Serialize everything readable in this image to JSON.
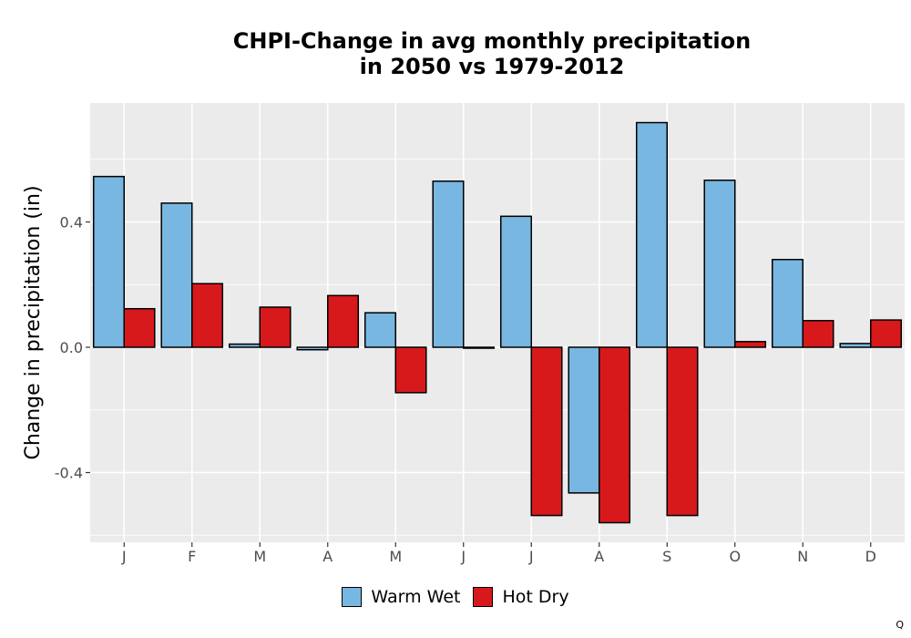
{
  "chart_data": {
    "type": "bar",
    "title_line1": "CHPI-Change in avg monthly precipitation",
    "title_line2": "in 2050 vs 1979-2012",
    "xlabel": "",
    "ylabel": "Change in precipitation (in)",
    "categories": [
      "J",
      "F",
      "M",
      "A",
      "M",
      "J",
      "J",
      "A",
      "S",
      "O",
      "N",
      "D"
    ],
    "series": [
      {
        "name": "Warm Wet",
        "color": "#78B7E1",
        "values": [
          0.545,
          0.46,
          0.01,
          -0.008,
          0.11,
          0.53,
          0.418,
          -0.465,
          0.717,
          0.533,
          0.28,
          0.012
        ]
      },
      {
        "name": "Hot Dry",
        "color": "#D7191C",
        "values": [
          0.123,
          0.203,
          0.128,
          0.165,
          -0.145,
          -0.003,
          -0.537,
          -0.56,
          -0.537,
          0.018,
          0.085,
          0.087
        ]
      }
    ],
    "yticks": [
      "0.4",
      "0.0",
      "-0.4"
    ],
    "ylim": [
      -0.625,
      0.78
    ],
    "grid": true,
    "legend_position": "bottom"
  },
  "corner_mark": "Q"
}
